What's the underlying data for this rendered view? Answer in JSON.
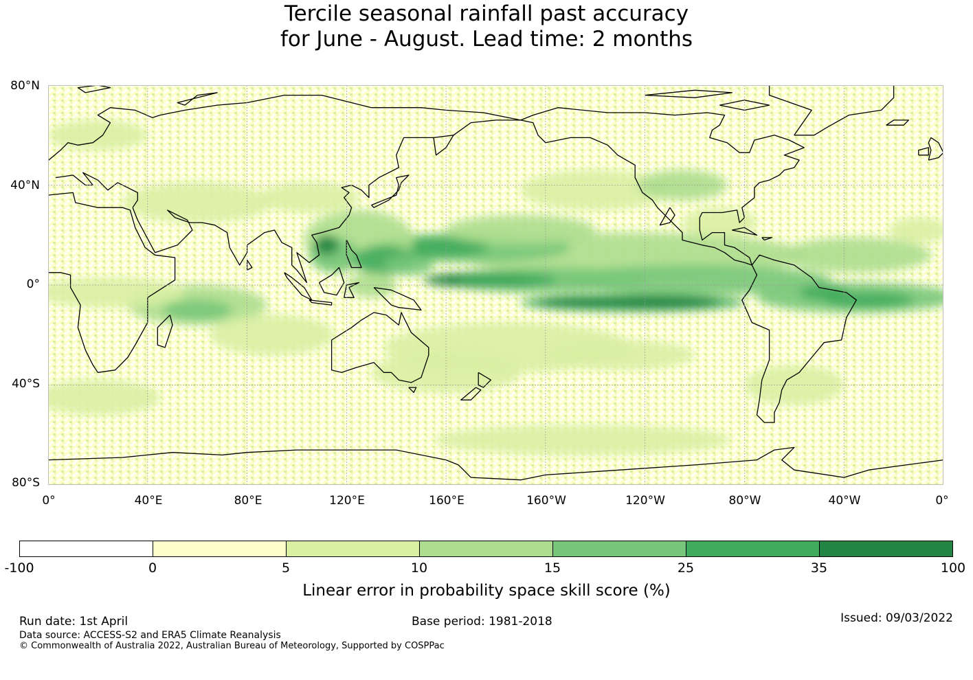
{
  "title": {
    "line1": "Tercile seasonal rainfall past accuracy",
    "line2": "for June - August. Lead time: 2 months"
  },
  "map": {
    "lat_labels": [
      "80°N",
      "40°N",
      "0°",
      "40°S",
      "80°S"
    ],
    "lat_values": [
      80,
      40,
      0,
      -40,
      -80
    ],
    "lon_labels": [
      "0°",
      "40°E",
      "80°E",
      "120°E",
      "160°E",
      "160°W",
      "120°W",
      "80°W",
      "40°W",
      "0°"
    ],
    "lon_values": [
      0,
      40,
      80,
      120,
      160,
      200,
      240,
      280,
      320,
      360
    ],
    "lat_range": [
      -80,
      80
    ],
    "lon_range": [
      0,
      360
    ],
    "gridlines": true,
    "coastlines": true
  },
  "colorbar": {
    "bounds": [
      "-100",
      "0",
      "5",
      "10",
      "15",
      "25",
      "35",
      "100"
    ],
    "colors": [
      "#ffffff",
      "#ffffcc",
      "#d9f0a3",
      "#addd8e",
      "#78c679",
      "#41ab5d",
      "#238443"
    ],
    "label": "Linear error in probability space skill score (%)"
  },
  "footer": {
    "run_date": "Run date: 1st April",
    "base_period": "Base period: 1981-2018",
    "issued": "Issued: 09/03/2022",
    "data_source": "Data source: ACCESS-S2 and ERA5 Climate Reanalysis",
    "copyright": "© Commonwealth of Australia 2022, Australian Bureau of Meteorology, Supported by COSPPac"
  }
}
